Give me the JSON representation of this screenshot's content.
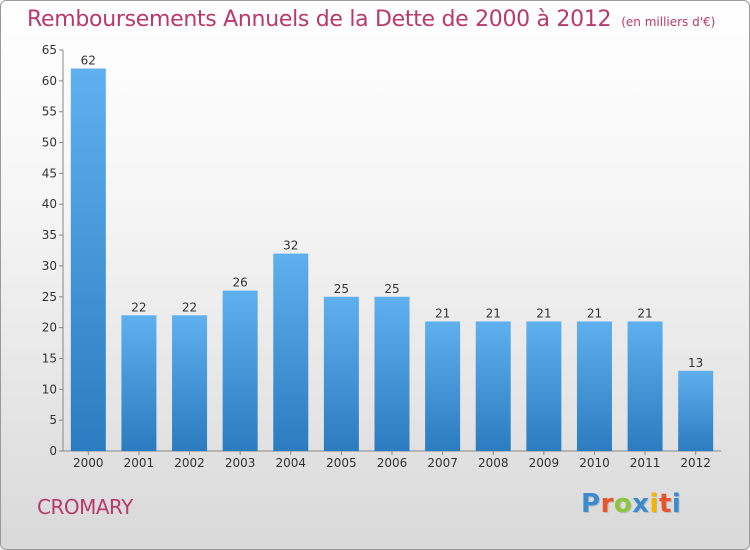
{
  "header": {
    "title": "Remboursements Annuels de la Dette de 2000 à 2012",
    "unit": "(en milliers d'€)"
  },
  "footer": {
    "town": "CROMARY",
    "logo_text": "Proxiti",
    "logo_colors": [
      "#3c8ccd",
      "#e8542b",
      "#8bc53f",
      "#3c8ccd",
      "#f2b400",
      "#e8542b",
      "#3c8ccd"
    ]
  },
  "colors": {
    "title": "#b83a6b",
    "bar_top": "#5fb0ee",
    "bar_bottom": "#2b7cc0"
  },
  "chart_data": {
    "type": "bar",
    "categories": [
      "2000",
      "2001",
      "2002",
      "2003",
      "2004",
      "2005",
      "2006",
      "2007",
      "2008",
      "2009",
      "2010",
      "2011",
      "2012"
    ],
    "values": [
      62,
      22,
      22,
      26,
      32,
      25,
      25,
      21,
      21,
      21,
      21,
      21,
      13
    ],
    "ylim": [
      0,
      65
    ],
    "yticks": [
      0,
      5,
      10,
      15,
      20,
      25,
      30,
      35,
      40,
      45,
      50,
      55,
      60,
      65
    ],
    "grid": false,
    "data_labels": true
  }
}
